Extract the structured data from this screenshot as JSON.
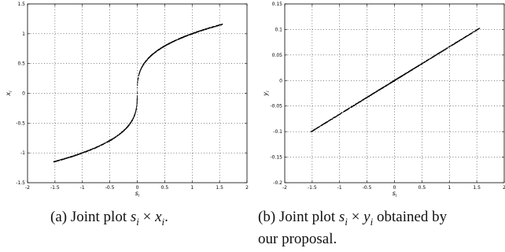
{
  "captions": {
    "a": {
      "label": "(a)",
      "prefix": "Joint plot",
      "var1": "s",
      "sub1": "i",
      "times": "×",
      "var2": "x",
      "sub2": "i",
      "suffix": "."
    },
    "b": {
      "label": "(b)",
      "prefix": "Joint plot",
      "var1": "s",
      "sub1": "i",
      "times": "×",
      "var2": "y",
      "sub2": "i",
      "line1_suffix": "obtained by",
      "line2": "our proposal."
    }
  },
  "chart_data": [
    {
      "type": "scatter",
      "title": "",
      "xlabel_var": "s",
      "xlabel_sub": "i",
      "ylabel_var": "x",
      "ylabel_sub": "i",
      "xlim": [
        -2,
        2
      ],
      "ylim": [
        -1.5,
        1.5
      ],
      "xticks": [
        "-2",
        "-1.5",
        "-1",
        "-0.5",
        "0",
        "0.5",
        "1",
        "1.5",
        "2"
      ],
      "yticks": [
        "-1.5",
        "-1",
        "-0.5",
        "0",
        "0.5",
        "1",
        "1.5"
      ],
      "xtick_values": [
        -2,
        -1.5,
        -1,
        -0.5,
        0,
        0.5,
        1,
        1.5,
        2
      ],
      "ytick_values": [
        -1.5,
        -1,
        -0.5,
        0,
        0.5,
        1,
        1.5
      ],
      "grid": true,
      "curve": "sign(s)*|s|^(1/3)",
      "x_range_data": [
        -1.52,
        1.55
      ],
      "points": [
        [
          -1.52,
          -1.15
        ],
        [
          -1.0,
          -1.0
        ],
        [
          -0.5,
          -0.79
        ],
        [
          -0.1,
          -0.46
        ],
        [
          0.0,
          0.0
        ],
        [
          0.1,
          0.46
        ],
        [
          0.5,
          0.79
        ],
        [
          1.0,
          1.0
        ],
        [
          1.27,
          1.08
        ],
        [
          1.55,
          1.16
        ]
      ]
    },
    {
      "type": "scatter",
      "title": "",
      "xlabel_var": "s",
      "xlabel_sub": "i",
      "ylabel_var": "y",
      "ylabel_sub": "i",
      "xlim": [
        -2,
        2
      ],
      "ylim": [
        -0.2,
        0.15
      ],
      "xticks": [
        "-2",
        "-1.5",
        "-1",
        "-0.5",
        "0",
        "0.5",
        "1",
        "1.5",
        "2"
      ],
      "yticks": [
        "-0.2",
        "-0.15",
        "-0.1",
        "-0.05",
        "0",
        "0.05",
        "0.1",
        "0.15"
      ],
      "xtick_values": [
        -2,
        -1.5,
        -1,
        -0.5,
        0,
        0.5,
        1,
        1.5,
        2
      ],
      "ytick_values": [
        -0.2,
        -0.15,
        -0.1,
        -0.05,
        0,
        0.05,
        0.1,
        0.15
      ],
      "grid": true,
      "curve": "0.066*s",
      "x_range_data": [
        -1.52,
        1.55
      ],
      "points": [
        [
          -1.52,
          -0.1
        ],
        [
          -1.0,
          -0.066
        ],
        [
          -0.5,
          -0.033
        ],
        [
          0.0,
          0.0
        ],
        [
          0.5,
          0.033
        ],
        [
          1.0,
          0.066
        ],
        [
          1.27,
          0.084
        ],
        [
          1.55,
          0.102
        ]
      ]
    }
  ]
}
